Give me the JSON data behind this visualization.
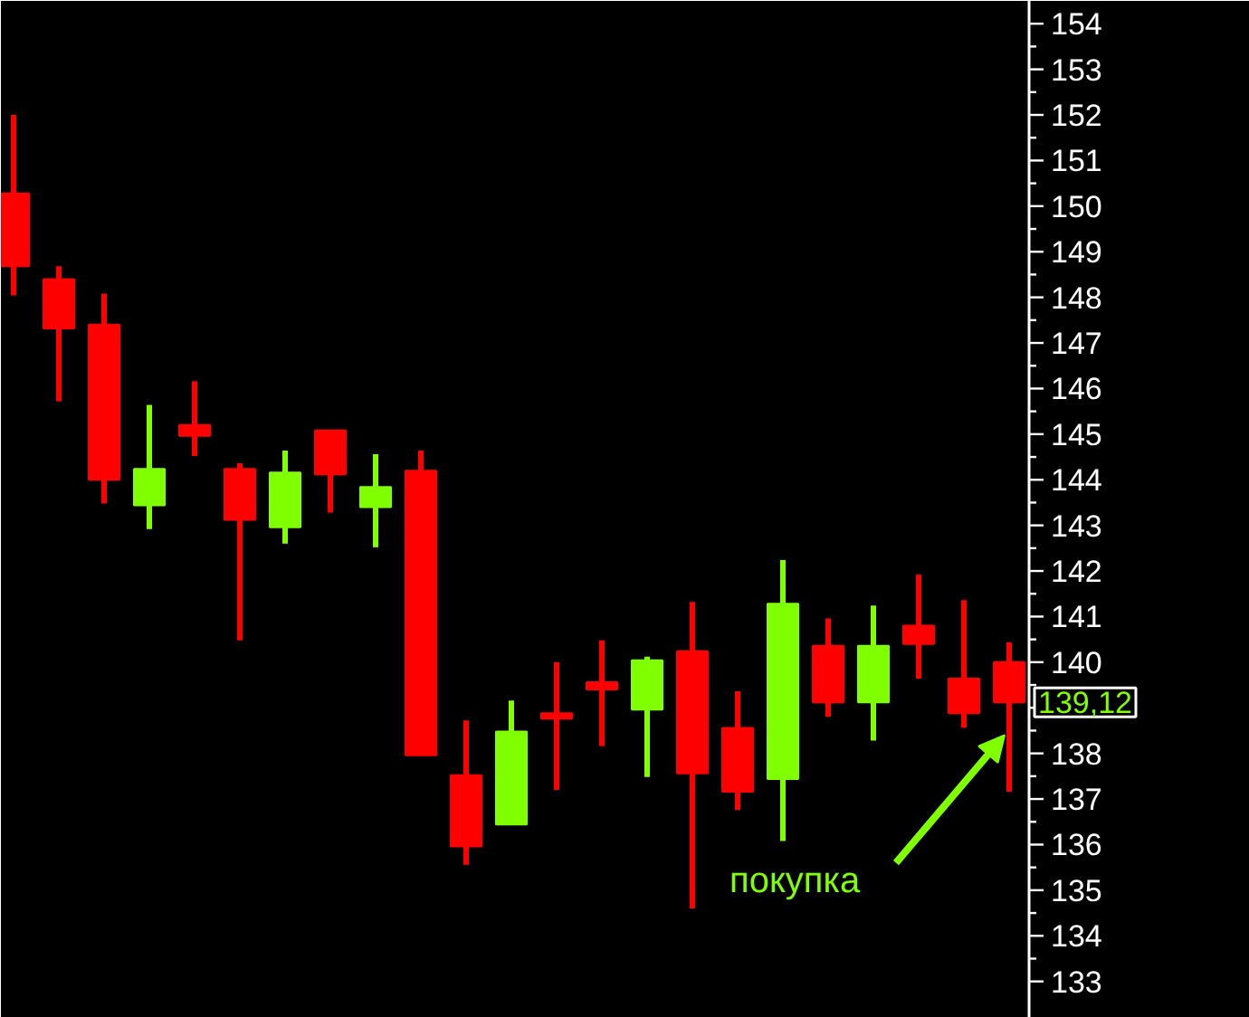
{
  "chart_data": {
    "type": "candlestick",
    "categories": [
      null,
      null,
      null,
      null,
      null,
      null,
      null,
      null,
      null,
      null,
      null,
      null,
      null,
      null,
      null,
      null,
      null,
      null,
      null,
      null,
      null,
      null,
      null
    ],
    "ohlc": [
      [
        150.28,
        152.0,
        148.04,
        148.68
      ],
      [
        148.4,
        148.68,
        145.72,
        147.32
      ],
      [
        147.4,
        148.08,
        143.48,
        144.0
      ],
      [
        143.44,
        145.64,
        142.92,
        144.24
      ],
      [
        145.2,
        146.16,
        144.52,
        144.96
      ],
      [
        144.24,
        144.36,
        140.48,
        143.12
      ],
      [
        142.96,
        144.64,
        142.6,
        144.16
      ],
      [
        145.08,
        145.08,
        143.28,
        144.12
      ],
      [
        143.4,
        144.56,
        142.52,
        143.84
      ],
      [
        144.2,
        144.64,
        137.96,
        137.96
      ],
      [
        137.52,
        138.72,
        135.56,
        135.96
      ],
      [
        136.44,
        139.16,
        136.44,
        138.48
      ],
      [
        138.88,
        140.0,
        137.2,
        138.76
      ],
      [
        139.56,
        140.48,
        138.16,
        139.4
      ],
      [
        138.96,
        140.12,
        137.48,
        140.04
      ],
      [
        140.24,
        141.32,
        134.6,
        137.56
      ],
      [
        138.56,
        139.36,
        136.76,
        137.16
      ],
      [
        137.44,
        142.24,
        136.08,
        141.28
      ],
      [
        140.36,
        140.96,
        138.8,
        139.12
      ],
      [
        139.12,
        141.24,
        138.28,
        140.36
      ],
      [
        140.8,
        141.92,
        139.64,
        140.4
      ],
      [
        139.64,
        141.36,
        138.56,
        138.88
      ],
      [
        140.0,
        140.44,
        137.16,
        139.12
      ]
    ],
    "colors": [
      "#ff0000",
      "#ff0000",
      "#ff0000",
      "#7fff00",
      "#ff0000",
      "#ff0000",
      "#7fff00",
      "#ff0000",
      "#7fff00",
      "#ff0000",
      "#ff0000",
      "#7fff00",
      "#ff0000",
      "#ff0000",
      "#7fff00",
      "#ff0000",
      "#ff0000",
      "#7fff00",
      "#ff0000",
      "#7fff00",
      "#ff0000",
      "#ff0000",
      "#ff0000"
    ],
    "ylim": [
      132.2,
      154.5
    ],
    "yticks": [
      133,
      134,
      135,
      136,
      137,
      138,
      {
        "value": 139,
        "label": null
      },
      140,
      141,
      142,
      143,
      144,
      145,
      146,
      147,
      148,
      149,
      150,
      151,
      152,
      153,
      154
    ],
    "grid": false,
    "annotations": [
      "покупка",
      "139,12"
    ]
  }
}
